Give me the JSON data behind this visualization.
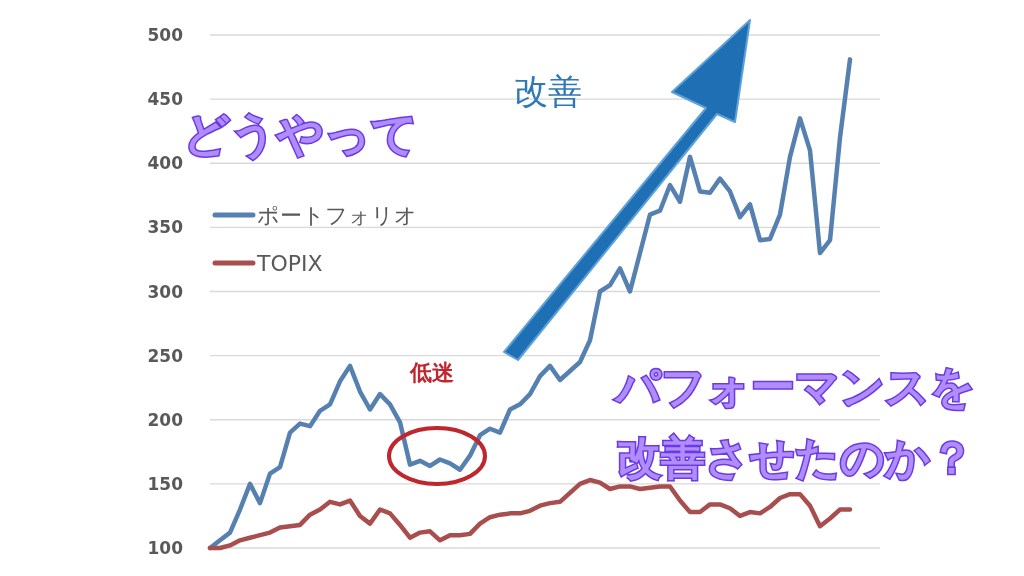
{
  "chart_data": {
    "type": "line",
    "categories": [
      null,
      null,
      null,
      null,
      null,
      null,
      null,
      null,
      null,
      null,
      null,
      null,
      null,
      null,
      null,
      null,
      null,
      null,
      null,
      null,
      null,
      null,
      null,
      null,
      null,
      null,
      null,
      null,
      null,
      null,
      null,
      null,
      null,
      null,
      null,
      null,
      null,
      null,
      null,
      null,
      null,
      null,
      null,
      null,
      null,
      null,
      null,
      null,
      null,
      null,
      null,
      null,
      null,
      null,
      null,
      null,
      null,
      null,
      null,
      null,
      null,
      null,
      null,
      null,
      null
    ],
    "series": [
      {
        "name": "ポートフォリオ",
        "color": "#5580b0",
        "values": [
          100,
          106,
          112,
          130,
          150,
          135,
          158,
          163,
          190,
          197,
          195,
          207,
          212,
          230,
          242,
          222,
          208,
          220,
          212,
          198,
          165,
          168,
          164,
          169,
          166,
          161,
          172,
          188,
          193,
          190,
          208,
          212,
          220,
          234,
          242,
          231,
          238,
          245,
          262,
          300,
          305,
          318,
          300,
          330,
          360,
          363,
          383,
          370,
          405,
          378,
          377,
          388,
          378,
          358,
          368,
          340,
          341,
          360,
          405,
          435,
          410,
          330,
          340,
          420,
          481
        ]
      },
      {
        "name": "TOPIX",
        "color": "#a84e4e",
        "values": [
          100,
          100,
          102,
          106,
          108,
          110,
          112,
          116,
          117,
          118,
          126,
          130,
          136,
          134,
          137,
          125,
          119,
          130,
          127,
          118,
          108,
          112,
          113,
          106,
          110,
          110,
          111,
          119,
          124,
          126,
          127,
          127,
          129,
          133,
          135,
          136,
          143,
          150,
          153,
          151,
          146,
          148,
          148,
          146,
          147,
          148,
          148,
          137,
          128,
          128,
          134,
          134,
          131,
          125,
          128,
          127,
          132,
          139,
          142,
          142,
          133,
          117,
          123,
          130,
          130
        ]
      }
    ],
    "ylim": [
      100,
      500
    ],
    "yticks": [
      100,
      150,
      200,
      250,
      300,
      350,
      400,
      450,
      500
    ],
    "grid": "y",
    "legend": "left",
    "line_style": "solid",
    "marker": "none",
    "annotations": [
      "改善",
      "低迷",
      "どうやって",
      "パフォーマンスを",
      "改善させたのか？"
    ]
  }
}
